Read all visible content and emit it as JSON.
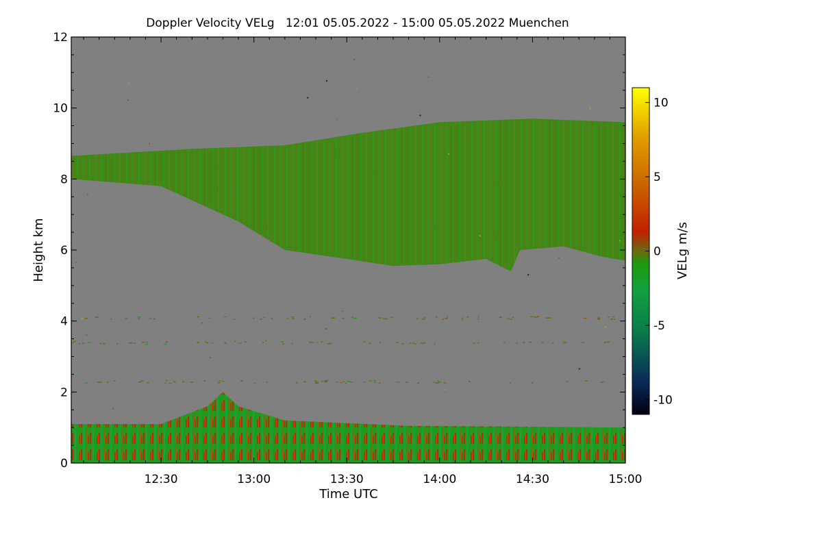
{
  "chart_data": {
    "type": "heatmap",
    "title": "Doppler Velocity VELg   12:01 05.05.2022 - 15:00 05.05.2022 Muenchen",
    "xlabel": "Time UTC",
    "ylabel": "Height km",
    "colorbar_label": "VELg m/s",
    "xlim": [
      "12:01",
      "15:00"
    ],
    "xlim_minutes": [
      721,
      900
    ],
    "ylim": [
      0,
      12
    ],
    "clim": [
      -11,
      11
    ],
    "x_ticks": [
      {
        "label": "12:30",
        "minutes": 750
      },
      {
        "label": "13:00",
        "minutes": 780
      },
      {
        "label": "13:30",
        "minutes": 810
      },
      {
        "label": "14:00",
        "minutes": 840
      },
      {
        "label": "14:30",
        "minutes": 870
      },
      {
        "label": "15:00",
        "minutes": 900
      }
    ],
    "y_ticks": [
      {
        "label": "0",
        "value": 0
      },
      {
        "label": "2",
        "value": 2
      },
      {
        "label": "4",
        "value": 4
      },
      {
        "label": "6",
        "value": 6
      },
      {
        "label": "8",
        "value": 8
      },
      {
        "label": "10",
        "value": 10
      },
      {
        "label": "12",
        "value": 12
      }
    ],
    "colorbar_ticks": [
      {
        "label": "10",
        "value": 10
      },
      {
        "label": "5",
        "value": 5
      },
      {
        "label": "0",
        "value": 0
      },
      {
        "label": "-5",
        "value": -5
      },
      {
        "label": "-10",
        "value": -10
      }
    ],
    "background_color": "#808080",
    "colormap": [
      "#000010",
      "#0a2a5a",
      "#0a7a4a",
      "#12a040",
      "#1e9a10",
      "#5a7a10",
      "#8a6a10",
      "#c02000",
      "#c85a00",
      "#e0a000",
      "#ffff00"
    ],
    "cloud_layer": {
      "description_units": "minutes / km",
      "top_km": [
        [
          721,
          8.65
        ],
        [
          760,
          8.85
        ],
        [
          790,
          8.95
        ],
        [
          815,
          9.3
        ],
        [
          840,
          9.6
        ],
        [
          870,
          9.7
        ],
        [
          900,
          9.6
        ]
      ],
      "base_km": [
        [
          721,
          8.0
        ],
        [
          750,
          7.8
        ],
        [
          765,
          7.2
        ],
        [
          775,
          6.8
        ],
        [
          790,
          6.0
        ],
        [
          810,
          5.75
        ],
        [
          825,
          5.55
        ],
        [
          840,
          5.6
        ],
        [
          855,
          5.75
        ],
        [
          863,
          5.4
        ],
        [
          866,
          6.0
        ],
        [
          880,
          6.1
        ],
        [
          893,
          5.8
        ],
        [
          900,
          5.7
        ]
      ],
      "mean_velocity_ms": -0.8
    },
    "boundary_layer": {
      "top_km": [
        [
          721,
          1.1
        ],
        [
          750,
          1.1
        ],
        [
          765,
          1.6
        ],
        [
          770,
          2.0
        ],
        [
          775,
          1.6
        ],
        [
          790,
          1.2
        ],
        [
          830,
          1.05
        ],
        [
          900,
          1.0
        ]
      ],
      "mean_velocity_ms": -1.5
    }
  }
}
